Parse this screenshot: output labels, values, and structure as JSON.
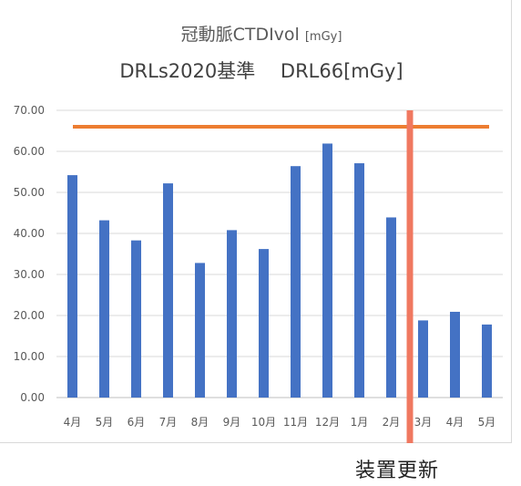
{
  "chart_data": {
    "type": "bar",
    "title_main": "冠動脈CTDIvol",
    "title_unit": "[mGy]",
    "subtitle": "DRLs2020基準　 DRL66[mGy]",
    "categories": [
      "4月",
      "5月",
      "6月",
      "7月",
      "8月",
      "9月",
      "10月",
      "11月",
      "12月",
      "1月",
      "2月",
      "3月",
      "4月",
      "5月"
    ],
    "values": [
      54.2,
      43.2,
      38.3,
      52.2,
      32.8,
      40.8,
      36.2,
      56.4,
      61.9,
      57.1,
      43.9,
      18.8,
      20.9,
      17.8
    ],
    "y_ticks": [
      "0.00",
      "10.00",
      "20.00",
      "30.00",
      "40.00",
      "50.00",
      "60.00",
      "70.00"
    ],
    "ylim": [
      0,
      70
    ],
    "reference_line": {
      "value": 66,
      "color": "#ed7d31"
    },
    "divider_after_category_index": 10,
    "divider_color": "#f07860",
    "bar_color": "#4472c4",
    "grid": true
  },
  "annotation": {
    "label": "装置更新"
  }
}
